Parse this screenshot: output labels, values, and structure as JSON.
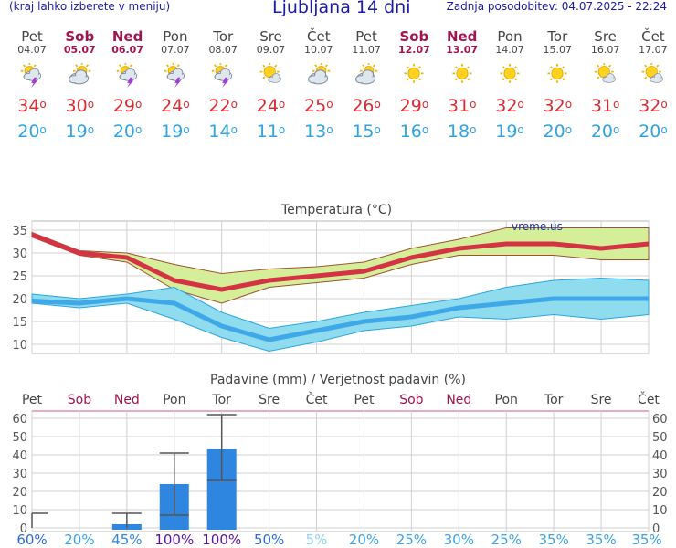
{
  "header": {
    "menu_hint": "(kraj lahko izberete v meniju)",
    "location_title": "Ljubljana 14 dni",
    "last_update": "Zadnja posodobitev: 04.07.2025 - 22:24"
  },
  "colors": {
    "title_blue": "#1a1aa8",
    "weekend": "#a0144f",
    "tmax": "#d92b33",
    "tmin": "#30a3e2",
    "rain_bar": "#2e86e0",
    "prob_dark": "#5a0fa8"
  },
  "days": [
    {
      "name": "Pet",
      "date": "04.07",
      "weekend": false,
      "icon": "sun-cloud-thunder-icon",
      "tmax": "34",
      "tmin": "20"
    },
    {
      "name": "Sob",
      "date": "05.07",
      "weekend": true,
      "icon": "sun-cloud-icon",
      "tmax": "30",
      "tmin": "19"
    },
    {
      "name": "Ned",
      "date": "06.07",
      "weekend": true,
      "icon": "sun-cloud-thunder-icon",
      "tmax": "29",
      "tmin": "20"
    },
    {
      "name": "Pon",
      "date": "07.07",
      "weekend": false,
      "icon": "sun-cloud-thunder-icon",
      "tmax": "24",
      "tmin": "19"
    },
    {
      "name": "Tor",
      "date": "08.07",
      "weekend": false,
      "icon": "sun-cloud-thunder-icon",
      "tmax": "22",
      "tmin": "14"
    },
    {
      "name": "Sre",
      "date": "09.07",
      "weekend": false,
      "icon": "sun-small-cloud-icon",
      "tmax": "24",
      "tmin": "11"
    },
    {
      "name": "Čet",
      "date": "10.07",
      "weekend": false,
      "icon": "sun-cloud-icon",
      "tmax": "25",
      "tmin": "13"
    },
    {
      "name": "Pet",
      "date": "11.07",
      "weekend": false,
      "icon": "sun-cloud-icon",
      "tmax": "26",
      "tmin": "15"
    },
    {
      "name": "Sob",
      "date": "12.07",
      "weekend": true,
      "icon": "sun-icon",
      "tmax": "29",
      "tmin": "16"
    },
    {
      "name": "Ned",
      "date": "13.07",
      "weekend": true,
      "icon": "sun-icon",
      "tmax": "31",
      "tmin": "18"
    },
    {
      "name": "Pon",
      "date": "14.07",
      "weekend": false,
      "icon": "sun-icon",
      "tmax": "32",
      "tmin": "19"
    },
    {
      "name": "Tor",
      "date": "15.07",
      "weekend": false,
      "icon": "sun-icon",
      "tmax": "32",
      "tmin": "20"
    },
    {
      "name": "Sre",
      "date": "16.07",
      "weekend": false,
      "icon": "sun-small-cloud-icon",
      "tmax": "31",
      "tmin": "20"
    },
    {
      "name": "Čet",
      "date": "17.07",
      "weekend": false,
      "icon": "sun-small-cloud-icon",
      "tmax": "32",
      "tmin": "20"
    }
  ],
  "chart_data": [
    {
      "type": "line",
      "title": "Temperatura (°C)",
      "watermark": "vreme.us",
      "ylim": [
        8,
        37
      ],
      "yticks": [
        10,
        15,
        20,
        25,
        30,
        35
      ],
      "grid": true,
      "x": [
        "04.07",
        "05.07",
        "06.07",
        "07.07",
        "08.07",
        "09.07",
        "10.07",
        "11.07",
        "12.07",
        "13.07",
        "14.07",
        "15.07",
        "16.07",
        "17.07"
      ],
      "series": [
        {
          "values": [
            34,
            30,
            29,
            24,
            22,
            24,
            25,
            26,
            29,
            31,
            32,
            32,
            31,
            32
          ],
          "band_low": [
            33.5,
            29.5,
            28,
            22,
            19,
            22.5,
            23.5,
            24.5,
            27.5,
            29.5,
            29.5,
            29.5,
            28.5,
            28.5
          ],
          "band_high": [
            34.5,
            30.5,
            30,
            27.5,
            25.5,
            26.5,
            27,
            28,
            31,
            33,
            35.5,
            35.5,
            35.5,
            35.5
          ]
        },
        {
          "values": [
            19.5,
            19,
            20,
            19,
            14,
            11,
            13,
            15,
            16,
            18,
            19,
            20,
            20,
            20
          ],
          "band_low": [
            19,
            18,
            19,
            15.5,
            11.5,
            8.5,
            10.5,
            13,
            14,
            16,
            15.5,
            16.5,
            15.5,
            16.5
          ],
          "band_high": [
            21,
            20,
            21,
            22.5,
            17,
            13.5,
            15,
            17,
            18.5,
            20,
            22.5,
            24,
            24.5,
            24
          ]
        }
      ]
    },
    {
      "type": "bar",
      "title": "Padavine (mm) / Verjetnost padavin (%)",
      "ylim": [
        -2,
        64
      ],
      "yticks": [
        0,
        10,
        20,
        30,
        40,
        50,
        60
      ],
      "grid": true,
      "categories": [
        "Pet",
        "Sob",
        "Ned",
        "Pon",
        "Tor",
        "Sre",
        "Čet",
        "Pet",
        "Sob",
        "Ned",
        "Pon",
        "Tor",
        "Sre",
        "Čet"
      ],
      "weekend": [
        false,
        true,
        true,
        false,
        false,
        false,
        false,
        false,
        true,
        true,
        false,
        false,
        false,
        false
      ],
      "values": [
        0,
        0,
        2,
        24,
        43,
        0,
        0,
        0,
        0,
        0,
        0,
        0,
        0,
        0
      ],
      "error_low": [
        0,
        0,
        0,
        7,
        26,
        0,
        0,
        0,
        0,
        0,
        0,
        0,
        0,
        0
      ],
      "error_high": [
        8,
        0,
        8,
        41,
        62,
        0,
        0,
        0,
        0,
        0,
        0,
        0,
        0,
        0
      ],
      "probability": [
        "60%",
        "20%",
        "45%",
        "100%",
        "100%",
        "50%",
        "5%",
        "20%",
        "25%",
        "30%",
        "25%",
        "35%",
        "35%",
        "35%"
      ]
    }
  ]
}
